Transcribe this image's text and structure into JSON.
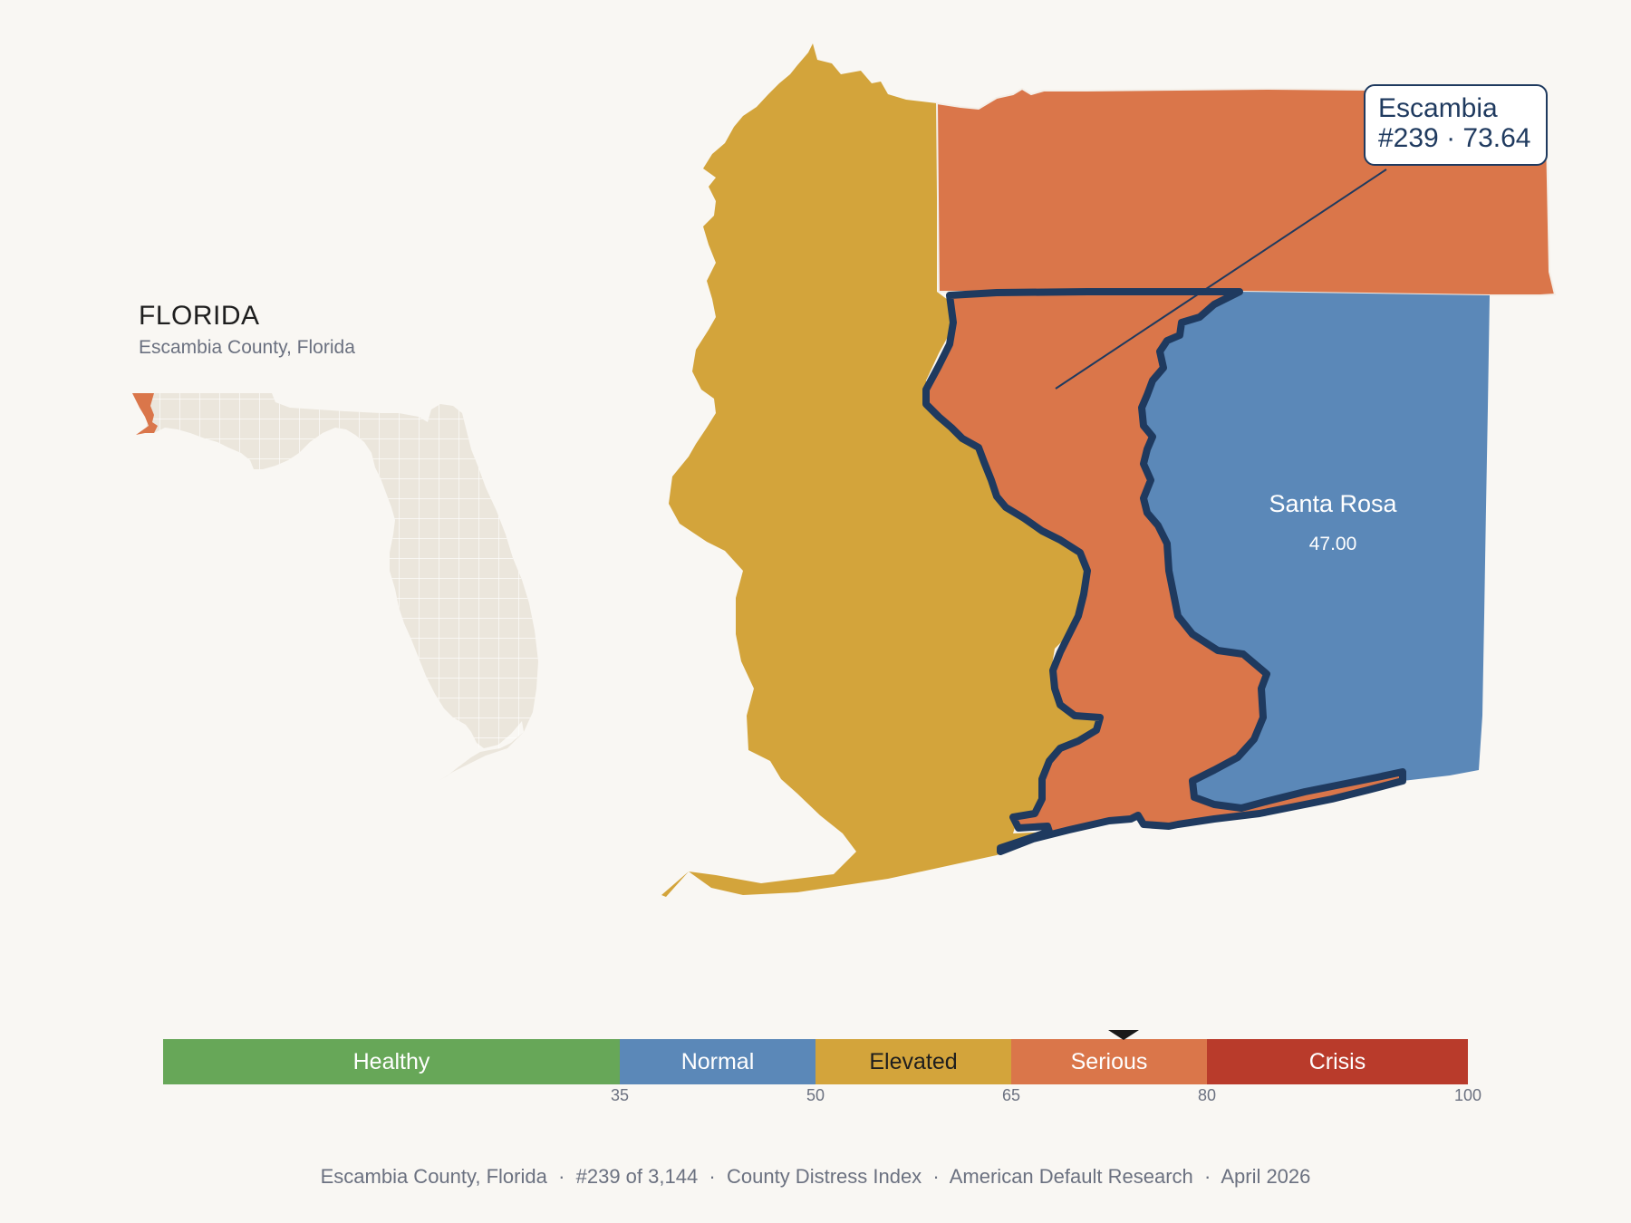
{
  "inset": {
    "title": "FLORIDA",
    "subtitle": "Escambia County, Florida"
  },
  "regions": [
    {
      "name": "Escambia",
      "score": 73.64,
      "band": "Serious",
      "selected": true
    },
    {
      "name": "Santa Rosa",
      "score_label": "47.00",
      "band": "Normal"
    }
  ],
  "callout": {
    "name": "Escambia",
    "rank_score": "#239 · 73.64"
  },
  "map_labels": {
    "santa_rosa_name": "Santa Rosa",
    "santa_rosa_score": "47.00"
  },
  "scale": {
    "min": 0,
    "max": 100,
    "current": 73.64,
    "bands": [
      {
        "label": "Healthy",
        "from": 0,
        "to": 35,
        "color": "#67a758",
        "text_color": "#ffffff"
      },
      {
        "label": "Normal",
        "from": 35,
        "to": 50,
        "color": "#5b88b8",
        "text_color": "#ffffff"
      },
      {
        "label": "Elevated",
        "from": 50,
        "to": 65,
        "color": "#d3a43b",
        "text_color": "#1e1e1e"
      },
      {
        "label": "Serious",
        "from": 65,
        "to": 80,
        "color": "#da764a",
        "text_color": "#ffffff"
      },
      {
        "label": "Crisis",
        "from": 80,
        "to": 100,
        "color": "#b93b2b",
        "text_color": "#ffffff"
      }
    ],
    "ticks": [
      "35",
      "50",
      "65",
      "80",
      "100"
    ]
  },
  "colors": {
    "serious": "#da764a",
    "elevated": "#d3a43b",
    "normal": "#5b88b8",
    "outline": "#1f3a5f",
    "inset_land": "#ebe6dc"
  },
  "footer": {
    "county": "Escambia County, Florida",
    "rank": "#239 of 3,144",
    "index": "County Distress Index",
    "source": "American Default Research",
    "date": "April 2026"
  }
}
